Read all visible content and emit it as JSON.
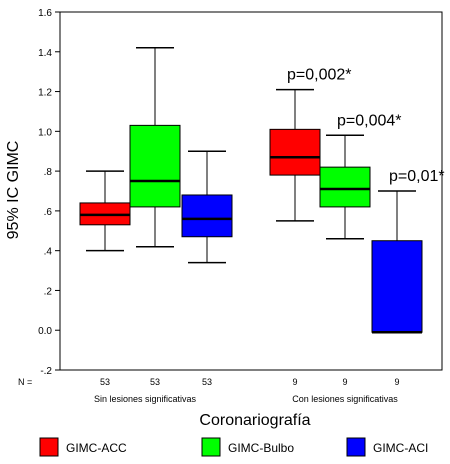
{
  "chart_data": {
    "type": "box",
    "ylabel": "95% IC GIMC",
    "xlabel": "Coronariografía",
    "ylim": [
      -0.2,
      1.6
    ],
    "yticks": [
      {
        "value": 1.6,
        "label": "1.6"
      },
      {
        "value": 1.4,
        "label": "1.4"
      },
      {
        "value": 1.2,
        "label": "1.2"
      },
      {
        "value": 1.0,
        "label": "1.0"
      },
      {
        "value": 0.8,
        "label": ".8"
      },
      {
        "value": 0.6,
        "label": ".6"
      },
      {
        "value": 0.4,
        "label": ".4"
      },
      {
        "value": 0.2,
        "label": ".2"
      },
      {
        "value": 0.0,
        "label": "0.0"
      },
      {
        "value": -0.2,
        "label": "-.2"
      }
    ],
    "n_label": "N =",
    "groups": [
      {
        "name": "Sin lesiones significativas",
        "n": [
          "53",
          "53",
          "53"
        ]
      },
      {
        "name": "Con lesiones significativas",
        "n": [
          "9",
          "9",
          "9"
        ]
      }
    ],
    "series": [
      {
        "name": "GIMC-ACC",
        "color": "#ff0000"
      },
      {
        "name": "GIMC-Bulbo",
        "color": "#00ff00"
      },
      {
        "name": "GIMC-ACI",
        "color": "#0000ff"
      }
    ],
    "boxes": [
      {
        "group": 0,
        "series": 0,
        "min": 0.4,
        "q1": 0.53,
        "median": 0.58,
        "q3": 0.64,
        "max": 0.8
      },
      {
        "group": 0,
        "series": 1,
        "min": 0.42,
        "q1": 0.62,
        "median": 0.75,
        "q3": 1.03,
        "max": 1.42
      },
      {
        "group": 0,
        "series": 2,
        "min": 0.34,
        "q1": 0.47,
        "median": 0.56,
        "q3": 0.68,
        "max": 0.9
      },
      {
        "group": 1,
        "series": 0,
        "min": 0.55,
        "q1": 0.78,
        "median": 0.87,
        "q3": 1.01,
        "max": 1.21
      },
      {
        "group": 1,
        "series": 1,
        "min": 0.46,
        "q1": 0.62,
        "median": 0.71,
        "q3": 0.82,
        "max": 0.98
      },
      {
        "group": 1,
        "series": 2,
        "min": -0.01,
        "q1": -0.01,
        "median": -0.01,
        "q3": 0.45,
        "max": 0.7
      }
    ],
    "annotations": [
      {
        "text": "p=0,002*",
        "series": 0,
        "group": 1
      },
      {
        "text": "p=0,004*",
        "series": 1,
        "group": 1
      },
      {
        "text": "p=0,01*",
        "series": 2,
        "group": 1
      }
    ],
    "legend": {
      "position": "bottom"
    }
  }
}
